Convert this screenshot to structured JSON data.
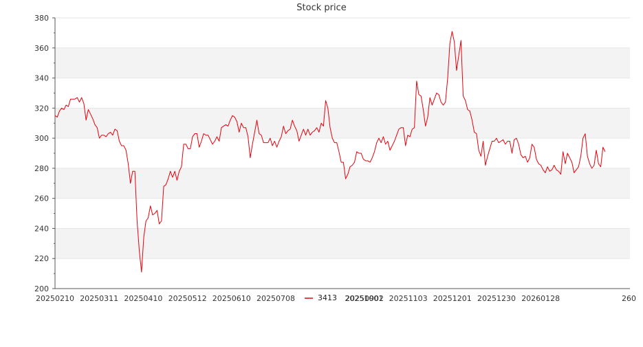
{
  "chart_data": {
    "type": "line",
    "title": "Stock price",
    "xlabel": "",
    "ylabel": "",
    "ylim": [
      200,
      380
    ],
    "y_ticks": [
      200,
      220,
      240,
      260,
      280,
      300,
      320,
      340,
      360,
      380
    ],
    "x_tick_labels": [
      "20250210",
      "20250311",
      "20250410",
      "20250512",
      "20250610",
      "20250708",
      "20250902",
      "20251001",
      "20251103",
      "20251201",
      "20251230",
      "20260128",
      "260"
    ],
    "grid": "horizontal bands",
    "legend_position": "bottom",
    "series": [
      {
        "name": "3413",
        "color": "#e8000b",
        "values": [
          315,
          314,
          318,
          320,
          319,
          322,
          321,
          326,
          326,
          326,
          327,
          324,
          327,
          323,
          312,
          319,
          316,
          313,
          309,
          307,
          300,
          302,
          302,
          301,
          303,
          304,
          302,
          306,
          305,
          298,
          295,
          295,
          292,
          283,
          270,
          278,
          278,
          245,
          225,
          211,
          234,
          245,
          247,
          255,
          249,
          250,
          252,
          243,
          245,
          268,
          269,
          273,
          278,
          274,
          278,
          272,
          278,
          281,
          296,
          296,
          293,
          293,
          301,
          303,
          303,
          294,
          298,
          303,
          302,
          302,
          299,
          296,
          298,
          301,
          298,
          307,
          308,
          309,
          308,
          312,
          315,
          314,
          311,
          304,
          310,
          307,
          307,
          301,
          287,
          296,
          304,
          312,
          303,
          302,
          297,
          297,
          297,
          300,
          295,
          298,
          294,
          298,
          301,
          308,
          303,
          305,
          306,
          312,
          308,
          305,
          298,
          302,
          306,
          302,
          306,
          302,
          304,
          305,
          307,
          304,
          310,
          308,
          325,
          320,
          307,
          300,
          297,
          297,
          291,
          284,
          284,
          273,
          276,
          281,
          282,
          284,
          291,
          290,
          290,
          286,
          285,
          285,
          284,
          287,
          291,
          297,
          300,
          297,
          301,
          296,
          298,
          292,
          295,
          298,
          302,
          306,
          307,
          307,
          295,
          302,
          301,
          306,
          307,
          338,
          329,
          328,
          319,
          308,
          314,
          327,
          322,
          326,
          330,
          329,
          324,
          322,
          324,
          340,
          363,
          371,
          364,
          345,
          355,
          365,
          328,
          325,
          319,
          318,
          312,
          304,
          303,
          292,
          288,
          298,
          282,
          288,
          293,
          298,
          298,
          300,
          297,
          298,
          299,
          296,
          298,
          298,
          290,
          299,
          300,
          296,
          289,
          287,
          288,
          284,
          287,
          296,
          294,
          286,
          283,
          282,
          279,
          277,
          281,
          278,
          279,
          282,
          279,
          278,
          276,
          291,
          283,
          290,
          287,
          284,
          277,
          279,
          281,
          288,
          300,
          303,
          288,
          283,
          280,
          282,
          292,
          283,
          281,
          294,
          291
        ]
      }
    ]
  }
}
